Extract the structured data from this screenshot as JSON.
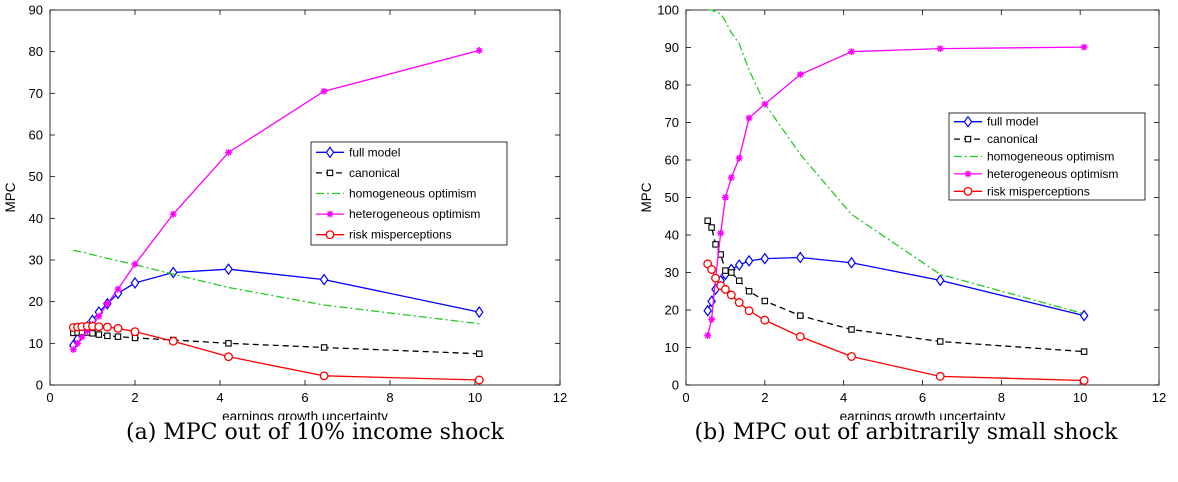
{
  "captions": {
    "a": "(a) MPC out of 10% income shock",
    "b": "(b) MPC out of arbitrarily small shock"
  },
  "colors": {
    "full model": "#0000ff",
    "canonical": "#000000",
    "homogeneous optimism": "#22cc22",
    "heterogeneous optimism": "#ff00ff",
    "risk misperceptions": "#ff0000"
  },
  "chart_data": [
    {
      "type": "line",
      "xlabel": "earnings growth uncertainty",
      "ylabel": "MPC",
      "xlim": [
        0,
        12
      ],
      "ylim": [
        0,
        90
      ],
      "xticks": [
        0,
        2,
        4,
        6,
        8,
        10,
        12
      ],
      "yticks": [
        0,
        10,
        20,
        30,
        40,
        50,
        60,
        70,
        80,
        90
      ],
      "legend_position": "right-center",
      "grid": false,
      "series": [
        {
          "name": "full model",
          "marker": "diamond",
          "style": "solid",
          "x": [
            0.55,
            0.65,
            0.75,
            0.88,
            1.0,
            1.15,
            1.35,
            1.6,
            2.0,
            2.9,
            4.2,
            6.45,
            10.1
          ],
          "y": [
            9.5,
            11.0,
            12.5,
            14.0,
            15.5,
            17.5,
            19.5,
            22.0,
            24.5,
            27.0,
            27.8,
            25.3,
            17.5
          ]
        },
        {
          "name": "canonical",
          "marker": "square",
          "style": "dashed",
          "x": [
            0.55,
            0.65,
            0.75,
            0.88,
            1.0,
            1.15,
            1.35,
            1.6,
            2.0,
            2.9,
            4.2,
            6.45,
            10.1
          ],
          "y": [
            12.5,
            12.6,
            12.7,
            12.6,
            12.4,
            12.1,
            11.8,
            11.6,
            11.3,
            10.8,
            10.0,
            9.0,
            7.5
          ]
        },
        {
          "name": "homogeneous optimism",
          "marker": "none",
          "style": "dashdot",
          "x": [
            0.55,
            0.65,
            0.75,
            0.88,
            1.0,
            1.15,
            1.35,
            1.6,
            2.0,
            2.9,
            4.2,
            6.45,
            10.1
          ],
          "y": [
            32.3,
            32.1,
            31.9,
            31.6,
            31.3,
            30.9,
            30.4,
            29.8,
            28.9,
            26.6,
            23.4,
            19.2,
            14.7
          ]
        },
        {
          "name": "heterogeneous optimism",
          "marker": "asterisk",
          "style": "solid",
          "x": [
            0.55,
            0.65,
            0.75,
            0.88,
            1.0,
            1.15,
            1.35,
            1.6,
            2.0,
            2.9,
            4.2,
            6.45,
            10.1
          ],
          "y": [
            8.5,
            10.0,
            11.5,
            13.0,
            14.5,
            16.5,
            19.5,
            23.0,
            29.0,
            41.0,
            55.8,
            70.5,
            80.3
          ]
        },
        {
          "name": "risk misperceptions",
          "marker": "circle",
          "style": "solid",
          "x": [
            0.55,
            0.65,
            0.75,
            0.88,
            1.0,
            1.15,
            1.35,
            1.6,
            2.0,
            2.9,
            4.2,
            6.45,
            10.1
          ],
          "y": [
            13.8,
            13.9,
            14.0,
            14.1,
            14.1,
            14.0,
            13.9,
            13.6,
            12.8,
            10.5,
            6.8,
            2.2,
            1.2
          ]
        }
      ]
    },
    {
      "type": "line",
      "xlabel": "earnings growth uncertainty",
      "ylabel": "MPC",
      "xlim": [
        0,
        12
      ],
      "ylim": [
        0,
        100
      ],
      "xticks": [
        0,
        2,
        4,
        6,
        8,
        10,
        12
      ],
      "yticks": [
        0,
        10,
        20,
        30,
        40,
        50,
        60,
        70,
        80,
        90,
        100
      ],
      "legend_position": "right-center",
      "grid": false,
      "series": [
        {
          "name": "full model",
          "marker": "diamond",
          "style": "solid",
          "x": [
            0.55,
            0.65,
            0.75,
            0.88,
            1.0,
            1.15,
            1.35,
            1.6,
            2.0,
            2.9,
            4.2,
            6.45,
            10.1
          ],
          "y": [
            19.8,
            22.3,
            25.5,
            27.8,
            29.5,
            30.8,
            32.0,
            33.1,
            33.7,
            34.0,
            32.6,
            27.9,
            18.5
          ]
        },
        {
          "name": "canonical",
          "marker": "square",
          "style": "dashed",
          "x": [
            0.55,
            0.65,
            0.75,
            0.88,
            1.0,
            1.15,
            1.35,
            1.6,
            2.0,
            2.9,
            4.2,
            6.45,
            10.1
          ],
          "y": [
            43.8,
            42.0,
            37.5,
            34.8,
            30.5,
            30.0,
            27.8,
            25.0,
            22.4,
            18.5,
            14.8,
            11.6,
            8.9
          ]
        },
        {
          "name": "homogeneous optimism",
          "marker": "none",
          "style": "dashdot",
          "x": [
            0.55,
            0.65,
            0.75,
            0.88,
            1.0,
            1.15,
            1.35,
            1.6,
            2.0,
            2.9,
            4.2,
            6.45,
            10.1
          ],
          "y": [
            100,
            100,
            99.5,
            99,
            97,
            94,
            91,
            84,
            75,
            61.5,
            45.5,
            29.5,
            19
          ]
        },
        {
          "name": "heterogeneous optimism",
          "marker": "asterisk",
          "style": "solid",
          "x": [
            0.55,
            0.65,
            0.75,
            0.88,
            1.0,
            1.15,
            1.35,
            1.6,
            2.0,
            2.9,
            4.2,
            6.45,
            10.1
          ],
          "y": [
            13.2,
            17.5,
            28.5,
            40.5,
            50.0,
            55.3,
            60.5,
            71.2,
            74.9,
            82.8,
            88.9,
            89.7,
            90.1
          ]
        },
        {
          "name": "risk misperceptions",
          "marker": "circle",
          "style": "solid",
          "x": [
            0.55,
            0.65,
            0.75,
            0.88,
            1.0,
            1.15,
            1.35,
            1.6,
            2.0,
            2.9,
            4.2,
            6.45,
            10.1
          ],
          "y": [
            32.3,
            30.8,
            28.5,
            26.5,
            25.5,
            24.0,
            22.0,
            19.8,
            17.3,
            12.9,
            7.6,
            2.3,
            1.2
          ]
        }
      ]
    }
  ]
}
